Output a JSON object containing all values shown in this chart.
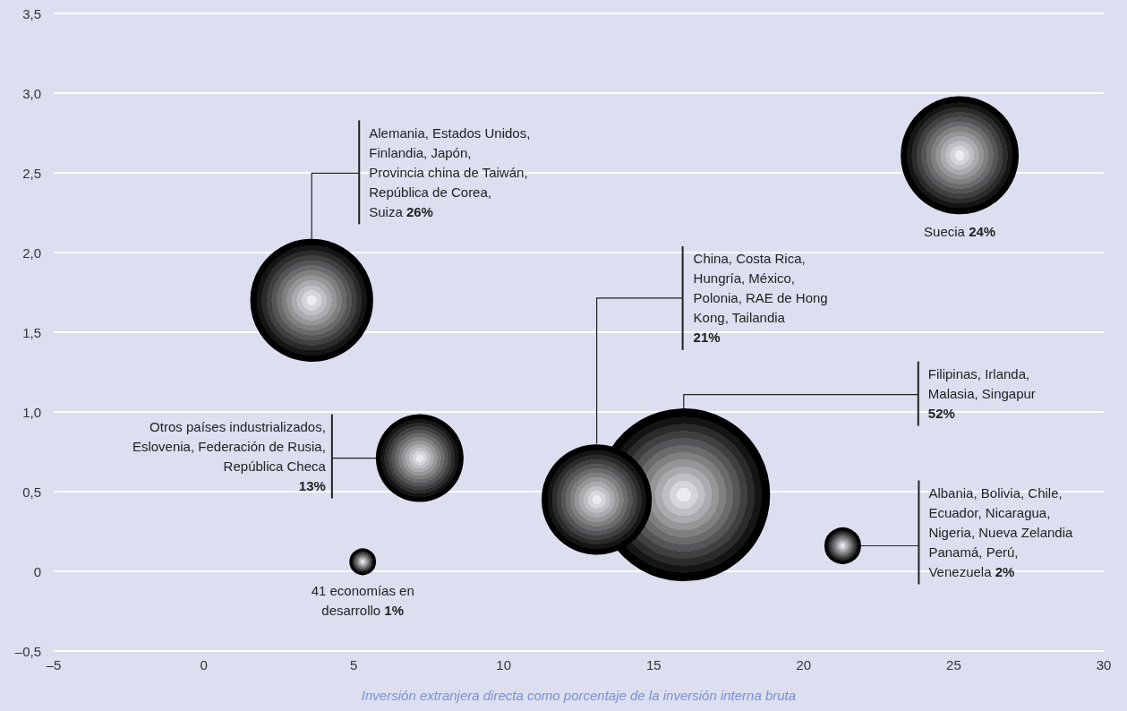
{
  "chart_data": {
    "type": "bubble",
    "xlabel": "Inversión extranjera directa como porcentaje de la inversión interna bruta",
    "x": [
      3.6,
      25.2,
      7.2,
      5.3,
      16.0,
      13.1,
      21.3
    ],
    "series": [
      {
        "color": "#000000",
        "values": [
          1.7,
          2.61,
          0.71,
          0.06,
          0.48,
          0.45,
          0.16
        ],
        "sizes": [
          0.5,
          0.46,
          0.25,
          0.02,
          1,
          0.4,
          0.04
        ]
      }
    ],
    "xlim": [
      -5,
      30
    ],
    "xticks": [
      {
        "value": -5,
        "label": "–5"
      },
      0,
      5,
      10,
      15,
      20,
      25,
      30
    ],
    "ylim": [
      -0.5,
      3.5
    ],
    "yticks": [
      {
        "value": -0.5,
        "label": "–0,5"
      },
      0,
      {
        "value": 0.5,
        "label": "0,5"
      },
      {
        "value": 1,
        "label": "1,0"
      },
      {
        "value": 1.5,
        "label": "1,5"
      },
      {
        "value": 2,
        "label": "2,0"
      },
      {
        "value": 2.5,
        "label": "2,5"
      },
      {
        "value": 3,
        "label": "3,0"
      },
      {
        "value": 3.5,
        "label": "3,5"
      }
    ],
    "grid": "y",
    "annotations": [
      {
        "text": "Alemania, Estados Unidos,\nFinlandia, Japón,\nProvincia china de Taiwán,\nRepública de Corea,\nSuiza 26%",
        "x": 3.6,
        "y": 2.08
      },
      "Suecia 24%",
      {
        "text": "Otros países industrializados,\nEslovenia, Federación de Rusia,\nRepública Checa\n13%",
        "x": 7.2,
        "y": 0.71
      },
      "41 economías en\ndesarrollo 1%",
      {
        "text": "Filipinas, Irlanda,\nMalasia, Singapur\n52%",
        "x": 16.0,
        "y": 1.01
      },
      {
        "text": "China, Costa Rica,\nHungría, México,\nPolonia, RAE de Hong\nKong, Tailandia\n21%",
        "x": 13.1,
        "y": 0.8
      },
      {
        "text": "Albania, Bolivia, Chile,\nEcuador, Nicaragua,\nNigeria, Nueva Zelandia\nPanamá, Perú,\nVenezuela 2%",
        "x": 21.87,
        "y": 0.16
      }
    ]
  }
}
